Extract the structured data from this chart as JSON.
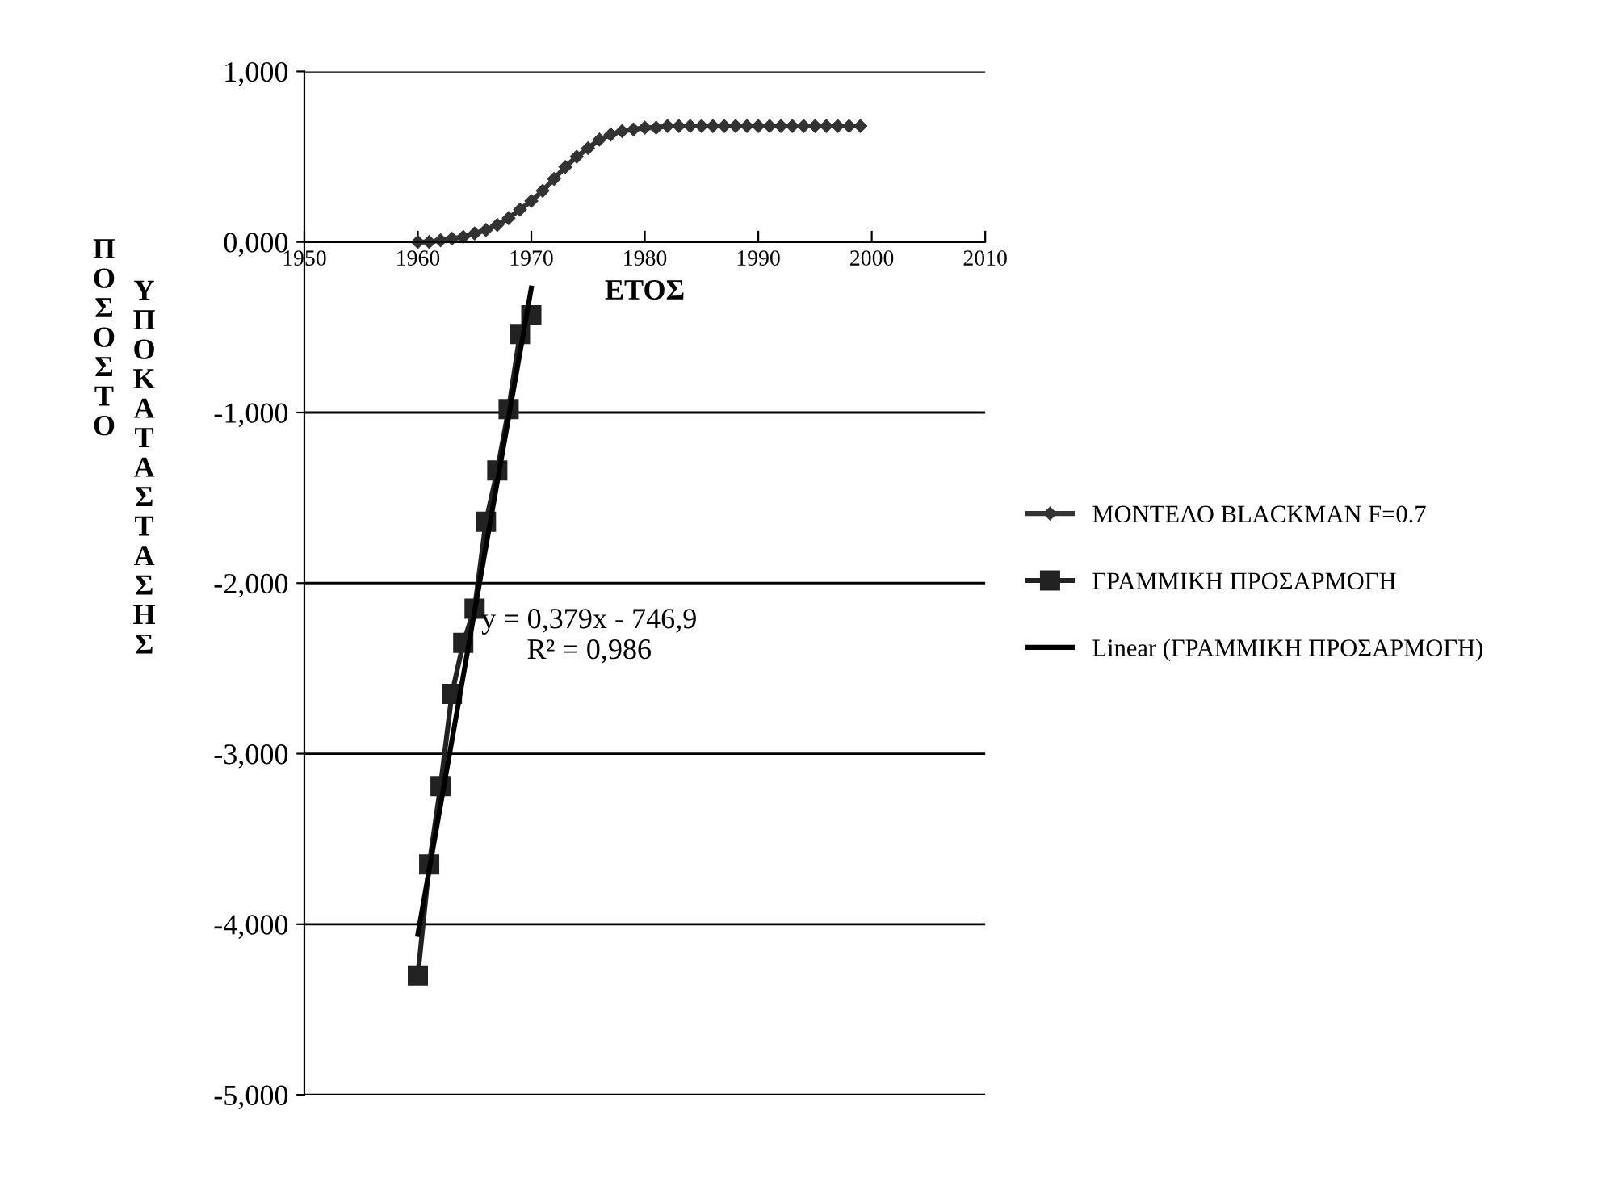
{
  "chart_data": {
    "type": "line",
    "xlabel": "ΕΤΟΣ",
    "ylabel": [
      "ΠΟΣΟΣΤΟ",
      "ΥΠΟΚΑΤΑΣΤΑΣΗΣ"
    ],
    "series": [
      {
        "name": "ΜΟΝΤΕΛΟ BLACKMAN F=0.7",
        "color": "#333333",
        "marker": "diamond",
        "x": [
          1960,
          1961,
          1962,
          1963,
          1964,
          1965,
          1966,
          1967,
          1968,
          1969,
          1970,
          1971,
          1972,
          1973,
          1974,
          1975,
          1976,
          1977,
          1978,
          1979,
          1980,
          1981,
          1982,
          1983,
          1984,
          1985,
          1986,
          1987,
          1988,
          1989,
          1990,
          1991,
          1992,
          1993,
          1994,
          1995,
          1996,
          1997,
          1998,
          1999
        ],
        "values": [
          0.0,
          0.0,
          0.01,
          0.02,
          0.03,
          0.05,
          0.07,
          0.1,
          0.14,
          0.19,
          0.24,
          0.3,
          0.37,
          0.44,
          0.5,
          0.55,
          0.6,
          0.63,
          0.65,
          0.66,
          0.67,
          0.67,
          0.68,
          0.68,
          0.68,
          0.68,
          0.68,
          0.68,
          0.68,
          0.68,
          0.68,
          0.68,
          0.68,
          0.68,
          0.68,
          0.68,
          0.68,
          0.68,
          0.68,
          0.68
        ]
      },
      {
        "name": "ΓΡΑΜΜΙΚΗ ΠΡΟΣΑΡΜΟΓΗ",
        "color": "#222222",
        "marker": "square",
        "x": [
          1960,
          1961,
          1962,
          1963,
          1964,
          1965,
          1966,
          1967,
          1968,
          1969,
          1970
        ],
        "values": [
          -4.3,
          -3.65,
          -3.19,
          -2.65,
          -2.35,
          -2.15,
          -1.64,
          -1.34,
          -0.98,
          -0.54,
          -0.43
        ]
      },
      {
        "name": "Linear (ΓΡΑΜΜΙΚΗ ΠΡΟΣΑΡΜΟΓΗ)",
        "color": "#000000",
        "marker": "none",
        "x": [
          1960,
          1970
        ],
        "values": [
          -4.06,
          -0.27
        ]
      }
    ],
    "xlim": [
      1950,
      2010
    ],
    "xticks": [
      1950,
      1960,
      1970,
      1980,
      1990,
      2000,
      2010
    ],
    "ylim": [
      -5,
      1
    ],
    "yticks": [
      {
        "value": -5,
        "label": "-5,000"
      },
      {
        "value": -4,
        "label": "-4,000"
      },
      {
        "value": -3,
        "label": "-3,000"
      },
      {
        "value": -2,
        "label": "-2,000"
      },
      {
        "value": -1,
        "label": "-1,000"
      },
      {
        "value": 0,
        "label": "0,000"
      },
      {
        "value": 1,
        "label": "1,000"
      }
    ],
    "grid": "y",
    "legend": "right",
    "annotations": [
      "y = 0,379x - 746,9\nR² = 0,986"
    ]
  }
}
